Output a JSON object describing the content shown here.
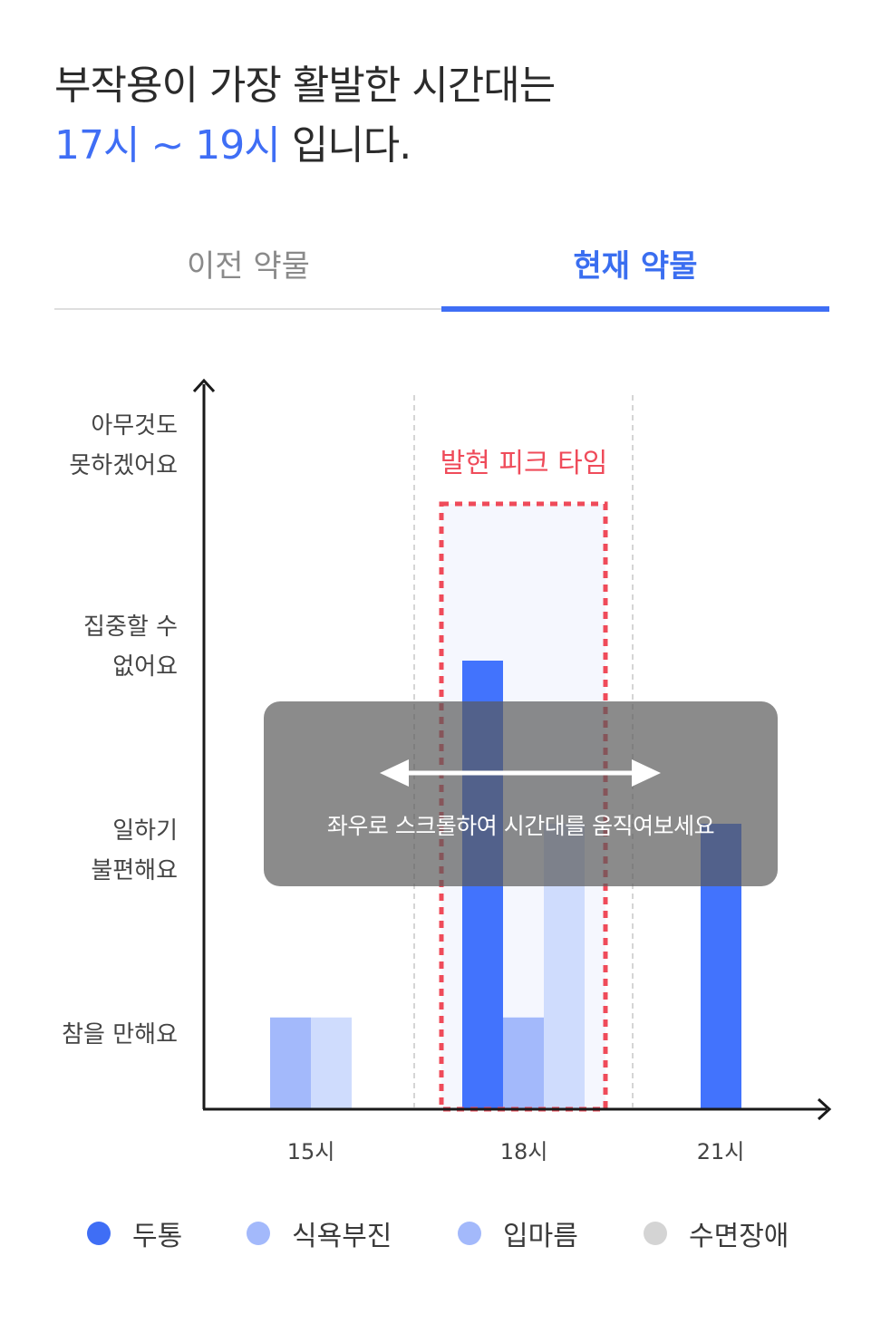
{
  "header": {
    "line1": "부작용이 가장 활발한 시간대는",
    "highlight": "17시 ~ 19시",
    "line2_rest": " 입니다."
  },
  "tabs": {
    "previous": "이전 약물",
    "current": "현재 약물",
    "active": "current"
  },
  "overlay": {
    "hint": "좌우로 스크롤하여 시간대를 움직여보세요"
  },
  "legend": [
    {
      "label": "두통",
      "color": "#3f6ef5"
    },
    {
      "label": "식욕부진",
      "color": "#a3b9fb"
    },
    {
      "label": "입마름",
      "color": "#a3b9fb"
    },
    {
      "label": "수면장애",
      "color": "#d4d4d4"
    }
  ],
  "colors": {
    "accent": "#3f6ef5",
    "peak": "#ef4b5a"
  },
  "chart_data": {
    "type": "bar",
    "categories": [
      "15시",
      "18시",
      "21시"
    ],
    "ylabels": [
      "참을 만해요",
      "일하기\n불편해요",
      "집중할 수\n없어요",
      "아무것도\n못하겠어요"
    ],
    "ylim": [
      0,
      4
    ],
    "series": [
      {
        "name": "두통",
        "values": [
          0,
          2.2,
          1.4
        ],
        "color": "#4273fd"
      },
      {
        "name": "식욕부진",
        "values": [
          0.45,
          0.45,
          0
        ],
        "color": "#a3b9fb"
      },
      {
        "name": "입마름",
        "values": [
          0.45,
          1.4,
          0
        ],
        "color": "#cfdcfd"
      }
    ],
    "peak": {
      "label": "발현 피크 타임",
      "from": "17시",
      "to": "19시"
    },
    "grid": false
  }
}
